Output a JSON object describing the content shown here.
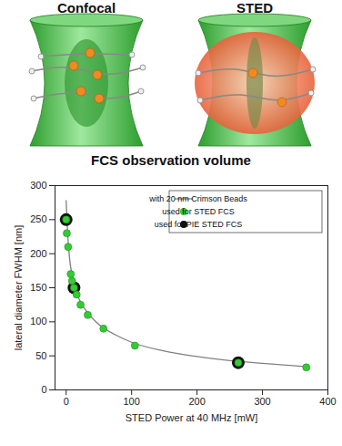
{
  "diagram": {
    "labels": [
      "Confocal",
      "STED"
    ]
  },
  "chart_data": {
    "type": "scatter",
    "title": "FCS observation volume",
    "x_label": "STED Power at 40 MHz [mW]",
    "y_label": "lateral diameter FWHM [nm]",
    "xlim": [
      -17,
      400
    ],
    "xticks": [
      0,
      100,
      200,
      300,
      400
    ],
    "ylim": [
      0,
      300
    ],
    "yticks": [
      0,
      50,
      100,
      150,
      200,
      250,
      300
    ],
    "legend": "top-right",
    "series": [
      {
        "name": "with 20 nm Crimson Beads",
        "type": "line",
        "color": "#808080",
        "line_style": "solid",
        "x": [
          0,
          2,
          5,
          10,
          20,
          30,
          50,
          75,
          100,
          150,
          200,
          250,
          300,
          370
        ],
        "values": [
          278,
          235,
          195,
          165,
          133,
          117,
          96,
          81,
          70,
          57,
          49,
          43,
          39,
          34
        ]
      },
      {
        "name": "used for PIE STED FCS",
        "type": "scatter",
        "color": "#111111",
        "marker": "circle",
        "x": [
          0,
          12,
          263
        ],
        "values": [
          250,
          150,
          40
        ]
      },
      {
        "name": "used for STED FCS",
        "type": "scatter",
        "color": "#33cc33",
        "marker": "circle",
        "x": [
          0,
          1,
          3,
          7,
          9,
          12,
          16,
          22,
          33,
          57,
          105,
          263,
          367
        ],
        "values": [
          250,
          230,
          210,
          170,
          160,
          150,
          140,
          125,
          110,
          90,
          65,
          40,
          33
        ]
      }
    ]
  }
}
